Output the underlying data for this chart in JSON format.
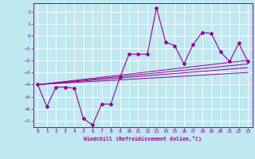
{
  "xlabel": "Windchill (Refroidissement éolien,°C)",
  "xlim": [
    -0.5,
    23.5
  ],
  "ylim": [
    -7.5,
    2.7
  ],
  "yticks": [
    2,
    1,
    0,
    -1,
    -2,
    -3,
    -4,
    -5,
    -6,
    -7
  ],
  "xticks": [
    0,
    1,
    2,
    3,
    4,
    5,
    6,
    7,
    8,
    9,
    10,
    11,
    12,
    13,
    14,
    15,
    16,
    17,
    18,
    19,
    20,
    21,
    22,
    23
  ],
  "line_color": "#990099",
  "bg_color": "#bfe8f0",
  "grid_color": "#ffffff",
  "main_line_x": [
    0,
    1,
    2,
    3,
    4,
    5,
    6,
    7,
    8,
    9,
    10,
    11,
    12,
    13,
    14,
    15,
    16,
    17,
    18,
    19,
    20,
    21,
    22,
    23
  ],
  "main_line_y": [
    -4.0,
    -5.8,
    -4.2,
    -4.2,
    -4.3,
    -6.8,
    -7.3,
    -5.6,
    -5.6,
    -3.4,
    -1.5,
    -1.5,
    -1.5,
    2.3,
    -0.5,
    -0.8,
    -2.3,
    -0.7,
    0.3,
    0.2,
    -1.3,
    -2.1,
    -0.6,
    -2.1
  ],
  "ref_lines": [
    {
      "x": [
        0,
        23
      ],
      "y": [
        -4.0,
        -2.0
      ]
    },
    {
      "x": [
        0,
        23
      ],
      "y": [
        -4.0,
        -2.3
      ]
    },
    {
      "x": [
        0,
        23
      ],
      "y": [
        -4.0,
        -2.6
      ]
    },
    {
      "x": [
        0,
        23
      ],
      "y": [
        -4.0,
        -3.0
      ]
    }
  ]
}
